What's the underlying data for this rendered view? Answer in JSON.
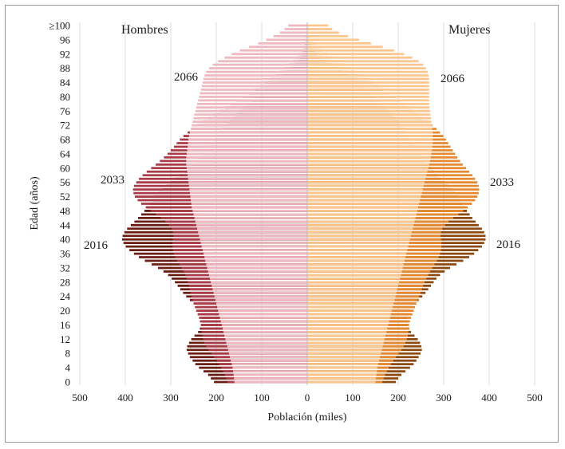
{
  "chart_data": {
    "type": "population-pyramid",
    "xlabel": "Población (miles)",
    "ylabel": "Edad (años)",
    "left_title": "Hombres",
    "right_title": "Mujeres",
    "x_ticks": [
      "500",
      "400",
      "300",
      "200",
      "100",
      "0",
      "100",
      "200",
      "300",
      "400",
      "500"
    ],
    "x_tick_values": [
      -500,
      -400,
      -300,
      -200,
      -100,
      0,
      100,
      200,
      300,
      400,
      500
    ],
    "y_ticks": [
      "0",
      "4",
      "8",
      "12",
      "16",
      "20",
      "24",
      "28",
      "32",
      "36",
      "40",
      "44",
      "48",
      "52",
      "56",
      "60",
      "64",
      "68",
      "72",
      "76",
      "80",
      "84",
      "88",
      "92",
      "96",
      "≥100"
    ],
    "y_tick_ages": [
      0,
      4,
      8,
      12,
      16,
      20,
      24,
      28,
      32,
      36,
      40,
      44,
      48,
      52,
      56,
      60,
      64,
      68,
      72,
      76,
      80,
      84,
      88,
      92,
      96,
      100
    ],
    "xlim": [
      -500,
      500
    ],
    "ylim": [
      0,
      100
    ],
    "ages": [
      0,
      1,
      2,
      3,
      4,
      5,
      6,
      7,
      8,
      9,
      10,
      11,
      12,
      13,
      14,
      15,
      16,
      17,
      18,
      19,
      20,
      21,
      22,
      23,
      24,
      25,
      26,
      27,
      28,
      29,
      30,
      31,
      32,
      33,
      34,
      35,
      36,
      37,
      38,
      39,
      40,
      41,
      42,
      43,
      44,
      45,
      46,
      47,
      48,
      49,
      50,
      51,
      52,
      53,
      54,
      55,
      56,
      57,
      58,
      59,
      60,
      61,
      62,
      63,
      64,
      65,
      66,
      67,
      68,
      69,
      70,
      71,
      72,
      73,
      74,
      75,
      76,
      77,
      78,
      79,
      80,
      81,
      82,
      83,
      84,
      85,
      86,
      87,
      88,
      89,
      90,
      91,
      92,
      93,
      94,
      95,
      96,
      97,
      98,
      99,
      100
    ],
    "series": [
      {
        "name": "2016",
        "label_left": "2016",
        "label_right": "2016",
        "men_color": "#6b1f14",
        "women_color": "#8c4a10",
        "men": [
          205,
          212,
          218,
          228,
          238,
          246,
          252,
          258,
          262,
          265,
          264,
          260,
          255,
          248,
          240,
          236,
          233,
          231,
          231,
          233,
          237,
          243,
          250,
          258,
          266,
          273,
          279,
          285,
          291,
          298,
          306,
          316,
          328,
          342,
          357,
          370,
          381,
          391,
          399,
          404,
          407,
          406,
          402,
          396,
          388,
          380,
          372,
          365,
          358,
          352,
          346,
          340,
          334,
          326,
          318,
          310,
          300,
          290,
          280,
          270,
          262,
          254,
          246,
          238,
          231,
          224,
          217,
          211,
          205,
          199,
          193,
          187,
          180,
          172,
          163,
          155,
          147,
          140,
          132,
          124,
          115,
          106,
          96,
          85,
          75,
          64,
          54,
          44,
          35,
          27,
          20,
          14,
          10,
          7,
          5,
          4,
          3,
          2,
          2,
          1,
          1
        ],
        "women": [
          195,
          200,
          207,
          216,
          226,
          234,
          240,
          245,
          249,
          252,
          251,
          248,
          243,
          236,
          228,
          224,
          221,
          220,
          220,
          222,
          226,
          232,
          238,
          245,
          253,
          260,
          266,
          272,
          278,
          284,
          292,
          302,
          314,
          328,
          343,
          356,
          367,
          376,
          384,
          389,
          392,
          392,
          389,
          384,
          377,
          370,
          363,
          357,
          351,
          346,
          341,
          336,
          331,
          324,
          317,
          310,
          302,
          294,
          286,
          278,
          271,
          264,
          258,
          252,
          247,
          242,
          237,
          232,
          227,
          222,
          217,
          212,
          206,
          199,
          192,
          185,
          178,
          171,
          164,
          156,
          148,
          140,
          131,
          121,
          111,
          100,
          89,
          77,
          65,
          53,
          42,
          32,
          23,
          16,
          11,
          7,
          5,
          3,
          2,
          2,
          1
        ]
      },
      {
        "name": "2033",
        "label_left": "2033",
        "label_right": "2033",
        "men_color": "#a93c48",
        "women_color": "#e58a30",
        "men": [
          175,
          178,
          181,
          185,
          189,
          194,
          199,
          205,
          211,
          217,
          222,
          226,
          229,
          231,
          232,
          233,
          234,
          236,
          238,
          241,
          244,
          247,
          250,
          252,
          254,
          256,
          258,
          260,
          262,
          265,
          268,
          272,
          276,
          281,
          286,
          290,
          293,
          295,
          296,
          296,
          295,
          294,
          295,
          298,
          304,
          312,
          322,
          333,
          344,
          355,
          365,
          373,
          379,
          382,
          383,
          381,
          376,
          370,
          362,
          353,
          343,
          333,
          324,
          315,
          307,
          300,
          293,
          287,
          280,
          272,
          263,
          253,
          242,
          230,
          218,
          206,
          193,
          181,
          168,
          155,
          142,
          129,
          116,
          104,
          92,
          81,
          70,
          59,
          49,
          40,
          31,
          24,
          18,
          13,
          9,
          7,
          5,
          4,
          3,
          2,
          2
        ],
        "women": [
          165,
          168,
          171,
          175,
          179,
          184,
          189,
          195,
          201,
          207,
          212,
          216,
          219,
          221,
          222,
          223,
          224,
          226,
          228,
          231,
          234,
          237,
          240,
          243,
          246,
          249,
          252,
          255,
          258,
          262,
          266,
          270,
          275,
          280,
          285,
          289,
          292,
          294,
          295,
          295,
          294,
          293,
          294,
          297,
          303,
          311,
          321,
          332,
          343,
          353,
          362,
          369,
          374,
          377,
          378,
          377,
          374,
          369,
          363,
          356,
          349,
          342,
          336,
          330,
          325,
          320,
          315,
          310,
          305,
          299,
          292,
          284,
          275,
          265,
          255,
          245,
          235,
          225,
          214,
          203,
          192,
          181,
          169,
          157,
          145,
          133,
          121,
          108,
          95,
          82,
          69,
          56,
          44,
          33,
          24,
          17,
          12,
          8,
          6,
          4,
          3
        ]
      },
      {
        "name": "2066",
        "label_left": "2066",
        "label_right": "2066",
        "men_color": "#efb9c0",
        "women_color": "#fbc58e",
        "men": [
          160,
          161,
          162,
          163,
          164,
          166,
          168,
          170,
          172,
          174,
          176,
          178,
          180,
          182,
          184,
          186,
          188,
          190,
          192,
          194,
          196,
          198,
          200,
          202,
          204,
          206,
          208,
          210,
          212,
          214,
          216,
          218,
          220,
          222,
          224,
          226,
          228,
          230,
          232,
          234,
          236,
          238,
          240,
          242,
          244,
          246,
          248,
          250,
          252,
          254,
          255,
          256,
          257,
          258,
          259,
          260,
          261,
          262,
          263,
          264,
          265,
          266,
          266,
          266,
          265,
          264,
          263,
          262,
          261,
          260,
          258,
          256,
          254,
          252,
          250,
          248,
          246,
          244,
          242,
          240,
          238,
          236,
          234,
          232,
          230,
          228,
          226,
          222,
          216,
          208,
          196,
          182,
          166,
          148,
          128,
          108,
          90,
          74,
          60,
          50,
          42
        ],
        "women": [
          150,
          151,
          152,
          153,
          154,
          156,
          158,
          160,
          162,
          164,
          166,
          168,
          170,
          172,
          174,
          176,
          178,
          180,
          182,
          184,
          186,
          188,
          190,
          192,
          194,
          196,
          198,
          200,
          202,
          204,
          206,
          208,
          210,
          212,
          214,
          216,
          218,
          220,
          222,
          224,
          226,
          228,
          230,
          232,
          234,
          236,
          238,
          240,
          242,
          244,
          246,
          248,
          250,
          252,
          254,
          256,
          258,
          260,
          262,
          264,
          266,
          268,
          270,
          272,
          273,
          274,
          275,
          276,
          276,
          276,
          276,
          275,
          274,
          273,
          272,
          271,
          270,
          269,
          268,
          268,
          268,
          268,
          268,
          268,
          268,
          268,
          267,
          265,
          261,
          255,
          245,
          231,
          213,
          191,
          166,
          140,
          114,
          90,
          70,
          55,
          46
        ]
      }
    ],
    "legend": "none"
  }
}
